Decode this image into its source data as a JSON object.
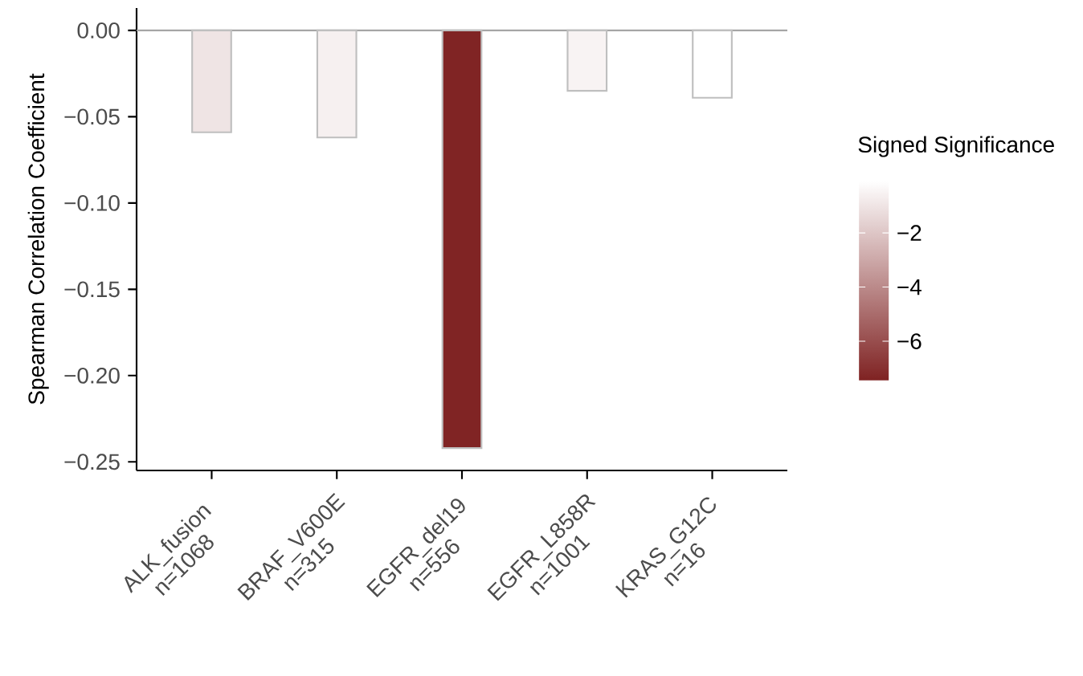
{
  "chart_data": {
    "type": "bar",
    "ylabel": "Spearman Correlation Coefficient",
    "clabel": "Signed Significance",
    "categories": [
      "ALK_fusion n=1068",
      "BRAF_V600E n=315",
      "EGFR_del19 n=556",
      "EGFR_L858R n=1001",
      "KRAS_G12C n=16"
    ],
    "values": [
      -0.059,
      -0.062,
      -0.242,
      -0.035,
      -0.039
    ],
    "cvalues": [
      -1.0,
      -0.6,
      -7.4,
      -0.5,
      -0.1
    ],
    "clim": [
      -7.45,
      -0.1
    ],
    "cticks": [
      {
        "value": -2,
        "label": "−2"
      },
      {
        "value": -4,
        "label": "−4"
      },
      {
        "value": -6,
        "label": "−6"
      }
    ],
    "ylim": [
      -0.255,
      0.013
    ],
    "yticks": [
      {
        "value": 0,
        "label": "0.00"
      },
      {
        "value": -0.05,
        "label": "−0.05"
      },
      {
        "value": -0.1,
        "label": "−0.10"
      },
      {
        "value": -0.15,
        "label": "−0.15"
      },
      {
        "value": -0.2,
        "label": "−0.20"
      },
      {
        "value": -0.25,
        "label": "−0.25"
      }
    ],
    "ref_lines": [
      {
        "axis": "y",
        "value": 0,
        "color": "#a6a6a6"
      }
    ],
    "grid": false
  }
}
